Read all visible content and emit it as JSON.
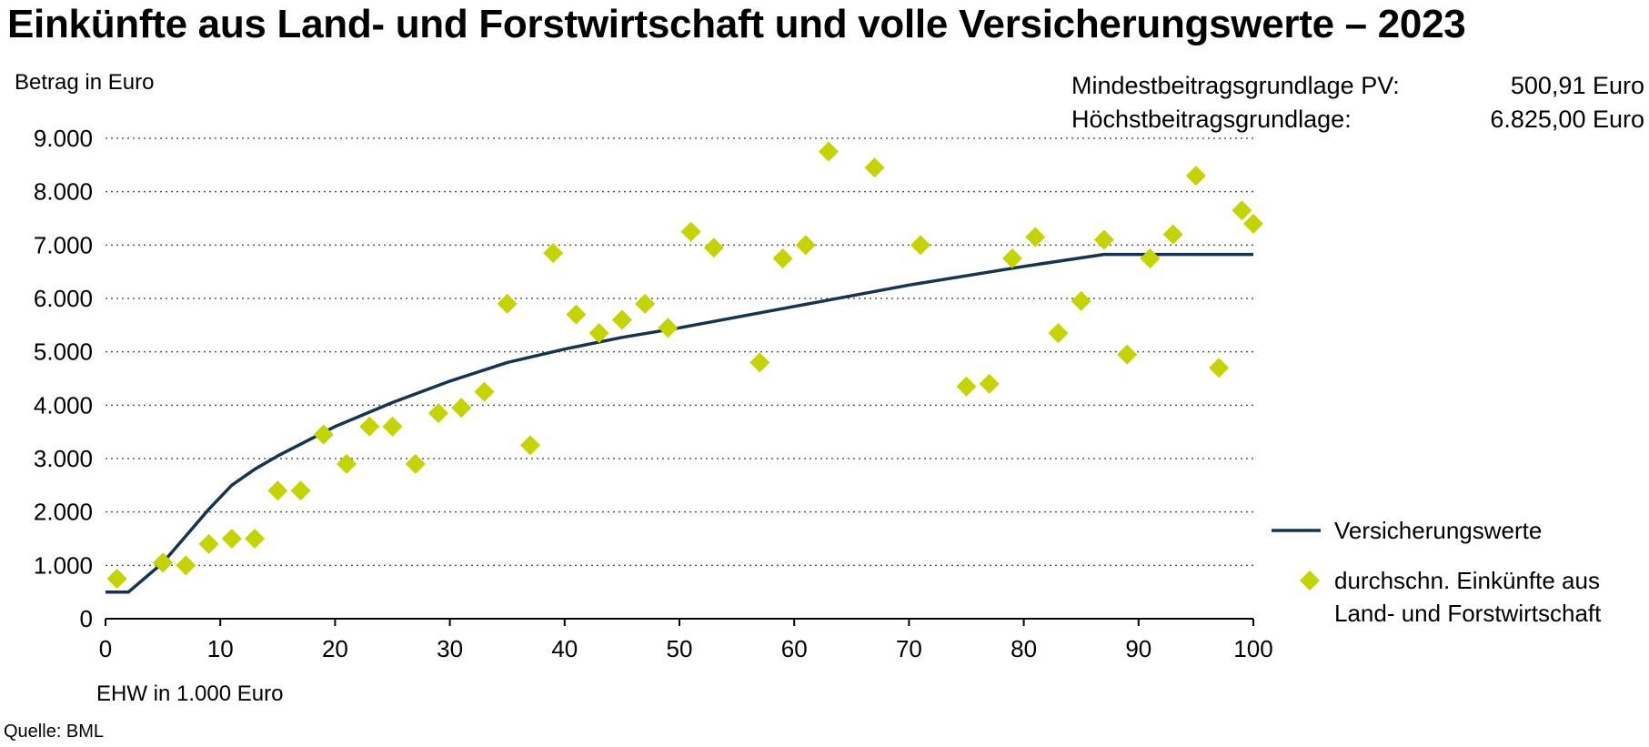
{
  "title": "Einkünfte aus Land- und Forstwirtschaft und volle Versicherungswerte – 2023",
  "source": "Quelle: BML",
  "info": [
    {
      "label": "Mindestbeitragsgrundlage PV:",
      "value": "500,91 Euro"
    },
    {
      "label": "Höchstbeitragsgrundlage:",
      "value": "6.825,00 Euro"
    }
  ],
  "colors": {
    "line": "#14344f",
    "points": "#c3d400",
    "grid": "#555555"
  },
  "chart_data": {
    "type": "line+scatter",
    "xlabel": "EHW in 1.000 Euro",
    "ylabel": "Betrag in Euro",
    "xlim": [
      0,
      100
    ],
    "ylim": [
      0,
      9000
    ],
    "x_ticks": [
      0,
      10,
      20,
      30,
      40,
      50,
      60,
      70,
      80,
      90,
      100
    ],
    "x_tick_labels": [
      "0",
      "10",
      "20",
      "30",
      "40",
      "50",
      "60",
      "70",
      "80",
      "90",
      "100"
    ],
    "y_ticks": [
      0,
      1000,
      2000,
      3000,
      4000,
      5000,
      6000,
      7000,
      8000,
      9000
    ],
    "y_tick_labels": [
      "0",
      "1.000",
      "2.000",
      "3.000",
      "4.000",
      "5.000",
      "6.000",
      "7.000",
      "8.000",
      "9.000"
    ],
    "grid": "horizontal dotted",
    "legend_position": "right",
    "series": [
      {
        "name": "Versicherungswerte",
        "kind": "line",
        "points": [
          [
            0,
            500
          ],
          [
            2,
            500
          ],
          [
            5,
            1050
          ],
          [
            7,
            1550
          ],
          [
            9,
            2050
          ],
          [
            11,
            2500
          ],
          [
            13,
            2800
          ],
          [
            15,
            3050
          ],
          [
            20,
            3600
          ],
          [
            25,
            4050
          ],
          [
            30,
            4450
          ],
          [
            35,
            4800
          ],
          [
            40,
            5050
          ],
          [
            45,
            5270
          ],
          [
            50,
            5450
          ],
          [
            60,
            5850
          ],
          [
            70,
            6250
          ],
          [
            80,
            6600
          ],
          [
            87,
            6825
          ],
          [
            100,
            6825
          ]
        ]
      },
      {
        "name": "durchschn. Einkünfte aus Land- und Forstwirtschaft",
        "legend_lines": [
          "durchschn. Einkünfte aus",
          "Land- und Forstwirtschaft"
        ],
        "kind": "scatter",
        "points": [
          [
            1,
            750
          ],
          [
            5,
            1050
          ],
          [
            7,
            1000
          ],
          [
            9,
            1400
          ],
          [
            11,
            1500
          ],
          [
            13,
            1500
          ],
          [
            15,
            2400
          ],
          [
            17,
            2400
          ],
          [
            19,
            3450
          ],
          [
            21,
            2900
          ],
          [
            23,
            3600
          ],
          [
            25,
            3600
          ],
          [
            27,
            2900
          ],
          [
            29,
            3850
          ],
          [
            31,
            3950
          ],
          [
            33,
            4250
          ],
          [
            35,
            5900
          ],
          [
            37,
            3250
          ],
          [
            39,
            6850
          ],
          [
            41,
            5700
          ],
          [
            43,
            5350
          ],
          [
            45,
            5600
          ],
          [
            47,
            5900
          ],
          [
            49,
            5450
          ],
          [
            51,
            7250
          ],
          [
            53,
            6950
          ],
          [
            57,
            4800
          ],
          [
            59,
            6750
          ],
          [
            61,
            7000
          ],
          [
            63,
            8750
          ],
          [
            67,
            8450
          ],
          [
            71,
            7000
          ],
          [
            75,
            4350
          ],
          [
            77,
            4400
          ],
          [
            79,
            6750
          ],
          [
            81,
            7150
          ],
          [
            83,
            5350
          ],
          [
            85,
            5950
          ],
          [
            87,
            7100
          ],
          [
            89,
            4950
          ],
          [
            91,
            6750
          ],
          [
            93,
            7200
          ],
          [
            95,
            8300
          ],
          [
            97,
            4700
          ],
          [
            99,
            7650
          ],
          [
            100,
            7400
          ]
        ]
      }
    ]
  }
}
